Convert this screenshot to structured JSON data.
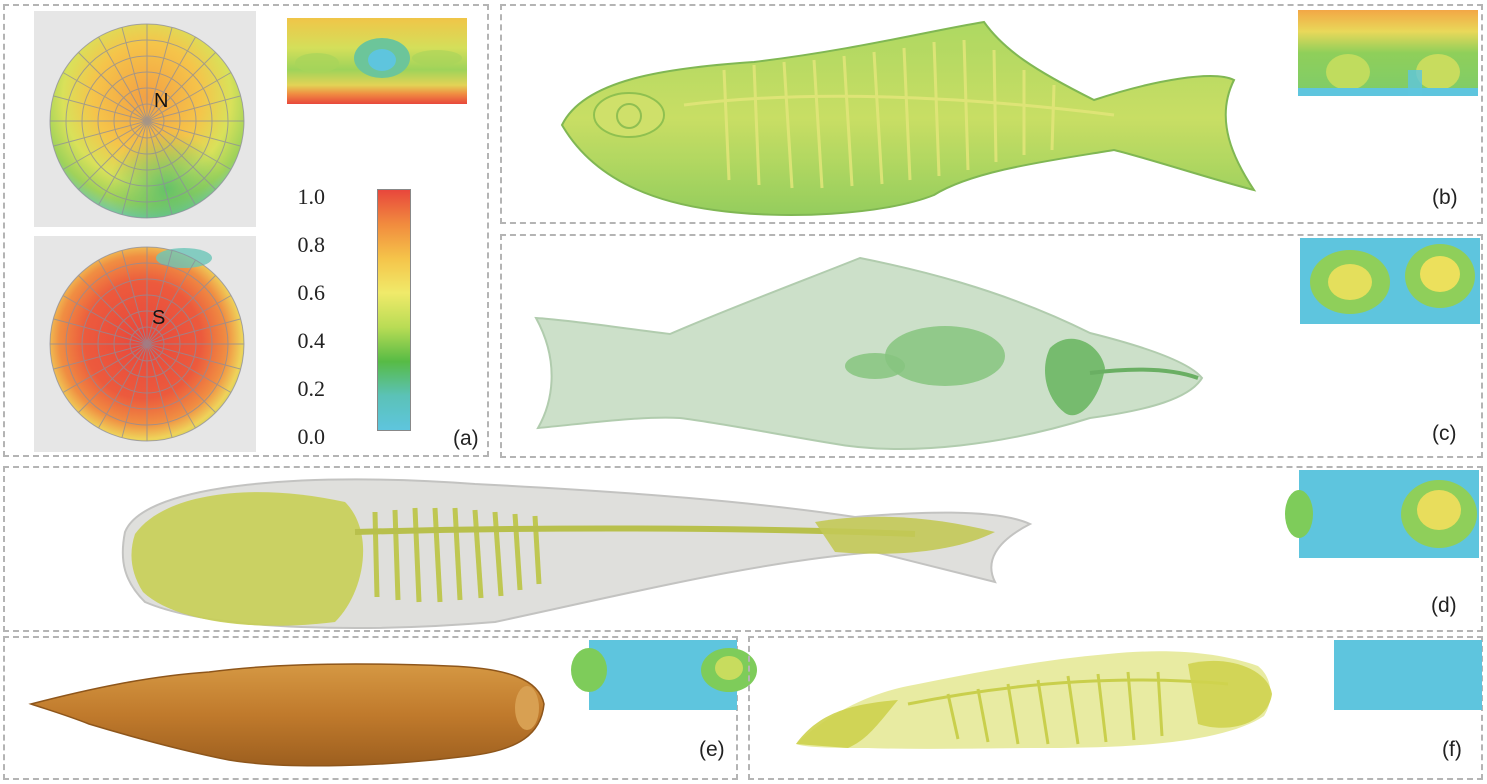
{
  "panels": {
    "a": {
      "label": "(a)",
      "north_label": "N",
      "south_label": "S"
    },
    "b": {
      "label": "(b)"
    },
    "c": {
      "label": "(c)"
    },
    "d": {
      "label": "(d)"
    },
    "e": {
      "label": "(e)"
    },
    "f": {
      "label": "(f)"
    }
  },
  "colorbar": {
    "ticks": [
      "1.0",
      "0.8",
      "0.6",
      "0.4",
      "0.2",
      "0.0"
    ],
    "range": [
      0.0,
      1.0
    ],
    "colors": [
      "#e8473c",
      "#f18b3e",
      "#f5c44a",
      "#f0ea6a",
      "#b9dc55",
      "#57bb45",
      "#5bc2b7",
      "#5ec5de"
    ]
  },
  "colors": {
    "border": "#b4b4b4",
    "map_cyan": "#5fc6d8",
    "fish_green": "#9fd45a",
    "fish_yellow": "#d8dc58",
    "fish_orange": "#c5812e"
  },
  "icons": [
    "north-polar-map",
    "south-polar-map",
    "fish-skeleton-render",
    "fish-body-render",
    "fish-surface-render"
  ]
}
